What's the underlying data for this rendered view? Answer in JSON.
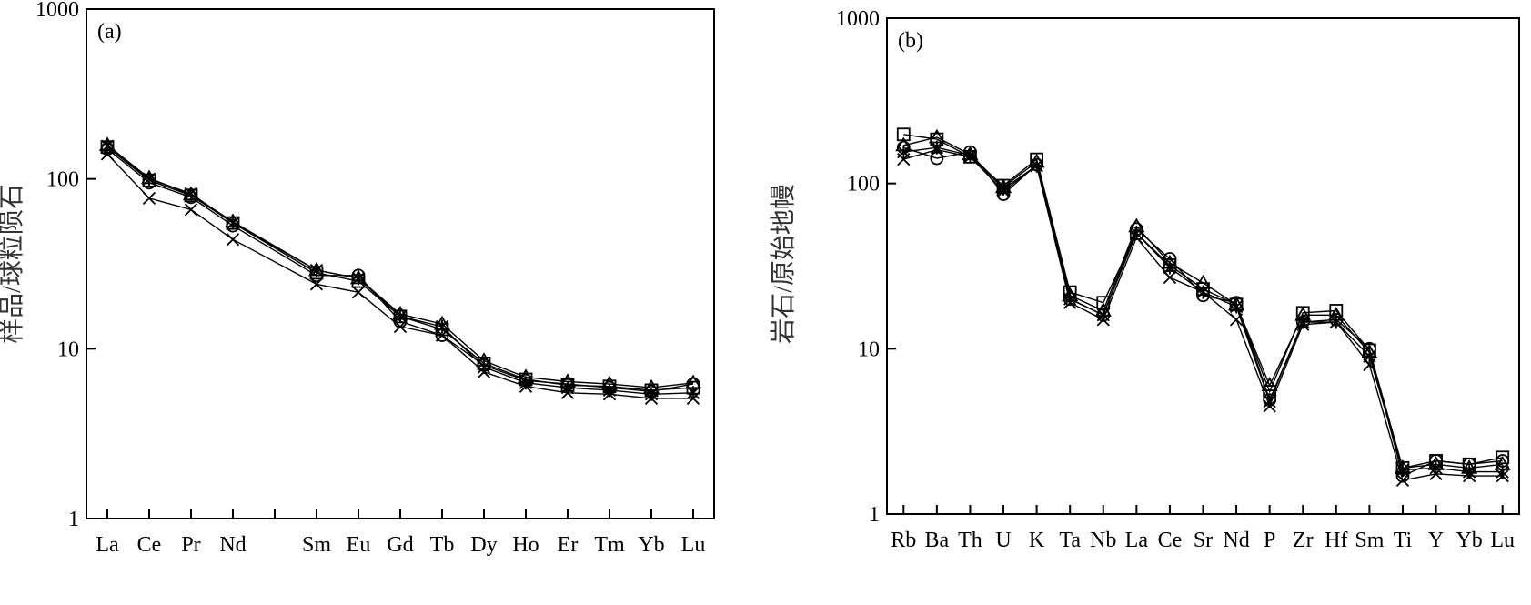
{
  "chart_data": [
    {
      "type": "line",
      "panel_label": "(a)",
      "ylabel": "样品/球粒陨石",
      "yscale": "log",
      "ylim": [
        1,
        1000
      ],
      "yticks": [
        "1",
        "10",
        "100",
        "1000"
      ],
      "categories": [
        "La",
        "Ce",
        "Pr",
        "Nd",
        "Sm",
        "Eu",
        "Gd",
        "Tb",
        "Dy",
        "Ho",
        "Er",
        "Tm",
        "Yb",
        "Lu"
      ],
      "category_slots": [
        0,
        1,
        2,
        3,
        5,
        6,
        7,
        8,
        9,
        10,
        11,
        12,
        13,
        14
      ],
      "slot_count": 15,
      "series": [
        {
          "marker": "circle",
          "values": [
            150,
            95,
            78,
            53,
            27,
            27,
            14.5,
            12,
            8.0,
            6.5,
            6.2,
            5.9,
            5.6,
            6.2
          ]
        },
        {
          "marker": "triangle",
          "values": [
            158,
            101,
            81,
            56,
            29,
            26,
            16,
            14,
            8.5,
            6.8,
            6.4,
            6.2,
            5.9,
            6.3
          ]
        },
        {
          "marker": "square",
          "values": [
            154,
            98,
            80,
            55,
            28,
            25,
            15.5,
            13,
            8.2,
            6.6,
            6.1,
            6.0,
            5.7,
            5.9
          ]
        },
        {
          "marker": "star",
          "values": [
            156,
            100,
            82,
            55,
            29,
            26,
            15.5,
            13.5,
            7.8,
            6.3,
            5.9,
            5.7,
            5.4,
            5.5
          ]
        },
        {
          "marker": "x",
          "values": [
            140,
            77,
            66,
            44,
            24,
            21.5,
            13.5,
            12,
            7.3,
            6.0,
            5.5,
            5.4,
            5.1,
            5.1
          ]
        }
      ]
    },
    {
      "type": "line",
      "panel_label": "(b)",
      "ylabel": "岩石/原始地幔",
      "yscale": "log",
      "ylim": [
        1,
        1000
      ],
      "yticks": [
        "1",
        "10",
        "100",
        "1000"
      ],
      "categories": [
        "Rb",
        "Ba",
        "Th",
        "U",
        "K",
        "Ta",
        "Nb",
        "La",
        "Ce",
        "Sr",
        "Nd",
        "P",
        "Zr",
        "Hf",
        "Sm",
        "Ti",
        "Y",
        "Yb",
        "Lu"
      ],
      "category_slots": [
        0,
        1,
        2,
        3,
        4,
        5,
        6,
        7,
        8,
        9,
        10,
        11,
        12,
        13,
        14,
        15,
        16,
        17,
        18
      ],
      "slot_count": 19,
      "series": [
        {
          "marker": "circle",
          "values": [
            165,
            142,
            155,
            86,
            130,
            20,
            16,
            53,
            35,
            21,
            19,
            4.9,
            14.5,
            15,
            10,
            1.7,
            2.1,
            2.0,
            2.1
          ]
        },
        {
          "marker": "triangle",
          "values": [
            170,
            190,
            150,
            95,
            135,
            21,
            17,
            55,
            33,
            25,
            18.5,
            6.0,
            16,
            16,
            9.5,
            1.9,
            2.0,
            1.9,
            2.0
          ]
        },
        {
          "marker": "square",
          "values": [
            198,
            185,
            145,
            97,
            140,
            22,
            19,
            50,
            32,
            23,
            18.5,
            5.5,
            16.5,
            17,
            9.8,
            1.9,
            2.1,
            2.0,
            2.2
          ]
        },
        {
          "marker": "star",
          "values": [
            155,
            165,
            148,
            93,
            128,
            20,
            16,
            50,
            31,
            22,
            18,
            4.8,
            14.5,
            14.5,
            9.0,
            1.85,
            1.9,
            1.8,
            1.8
          ]
        },
        {
          "marker": "x",
          "values": [
            140,
            160,
            145,
            90,
            128,
            19,
            15,
            47,
            27,
            22,
            15,
            4.5,
            14,
            14.5,
            8.0,
            1.6,
            1.75,
            1.7,
            1.7
          ]
        }
      ]
    }
  ]
}
